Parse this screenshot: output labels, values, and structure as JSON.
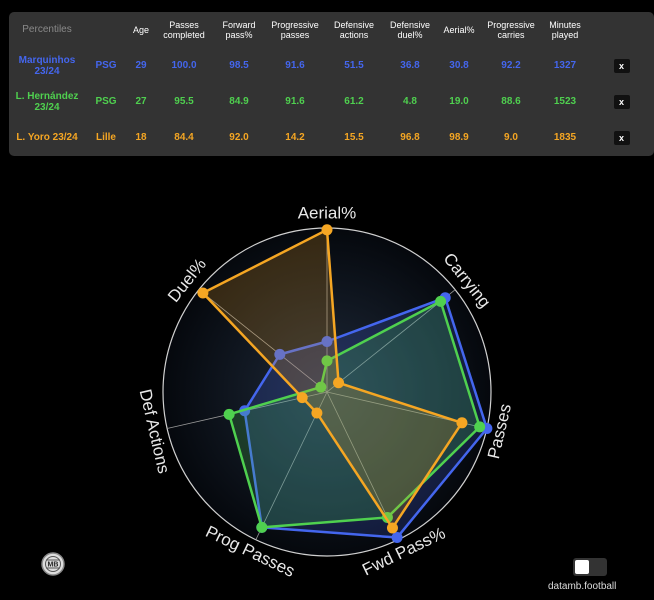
{
  "table": {
    "headers": [
      "Percentiles",
      "",
      "Age",
      "Passes completed",
      "Forward pass%",
      "Progressive passes",
      "Defensive actions",
      "Defensive duel%",
      "Aerial%",
      "Progressive carries",
      "Minutes played",
      ""
    ],
    "rows": [
      {
        "player": "Marquinhos 23/24",
        "team": "PSG",
        "age": "29",
        "values": [
          "100.0",
          "98.5",
          "91.6",
          "51.5",
          "36.8",
          "30.8",
          "92.2",
          "1327"
        ],
        "remove": "x",
        "color": "#4466ee"
      },
      {
        "player": "L. Hernández 23/24",
        "team": "PSG",
        "age": "27",
        "values": [
          "95.5",
          "84.9",
          "91.6",
          "61.2",
          "4.8",
          "19.0",
          "88.6",
          "1523"
        ],
        "remove": "x",
        "color": "#4fd04f"
      },
      {
        "player": "L. Yoro 23/24",
        "team": "Lille",
        "age": "18",
        "values": [
          "84.4",
          "92.0",
          "14.2",
          "15.5",
          "96.8",
          "98.9",
          "9.0",
          "1835"
        ],
        "remove": "x",
        "color": "#f5a623"
      }
    ]
  },
  "chart_data": {
    "type": "radar",
    "axes": [
      "Aerial%",
      "Carrying",
      "Passes",
      "Fwd Pass%",
      "Prog Passes",
      "Def Actions",
      "Duel%"
    ],
    "range": [
      0,
      100
    ],
    "series": [
      {
        "name": "Marquinhos 23/24",
        "color": "#4466ee",
        "values": [
          30.8,
          92.2,
          100.0,
          98.5,
          91.6,
          51.5,
          36.8
        ]
      },
      {
        "name": "L. Hernández 23/24",
        "color": "#4fd04f",
        "values": [
          19.0,
          88.6,
          95.5,
          84.9,
          91.6,
          61.2,
          4.8
        ]
      },
      {
        "name": "L. Yoro 23/24",
        "color": "#f5a623",
        "values": [
          98.9,
          9.0,
          84.4,
          92.0,
          14.2,
          15.5,
          96.8
        ]
      }
    ]
  },
  "footer": {
    "logo_text": "MB",
    "brand": "datamb.football"
  }
}
